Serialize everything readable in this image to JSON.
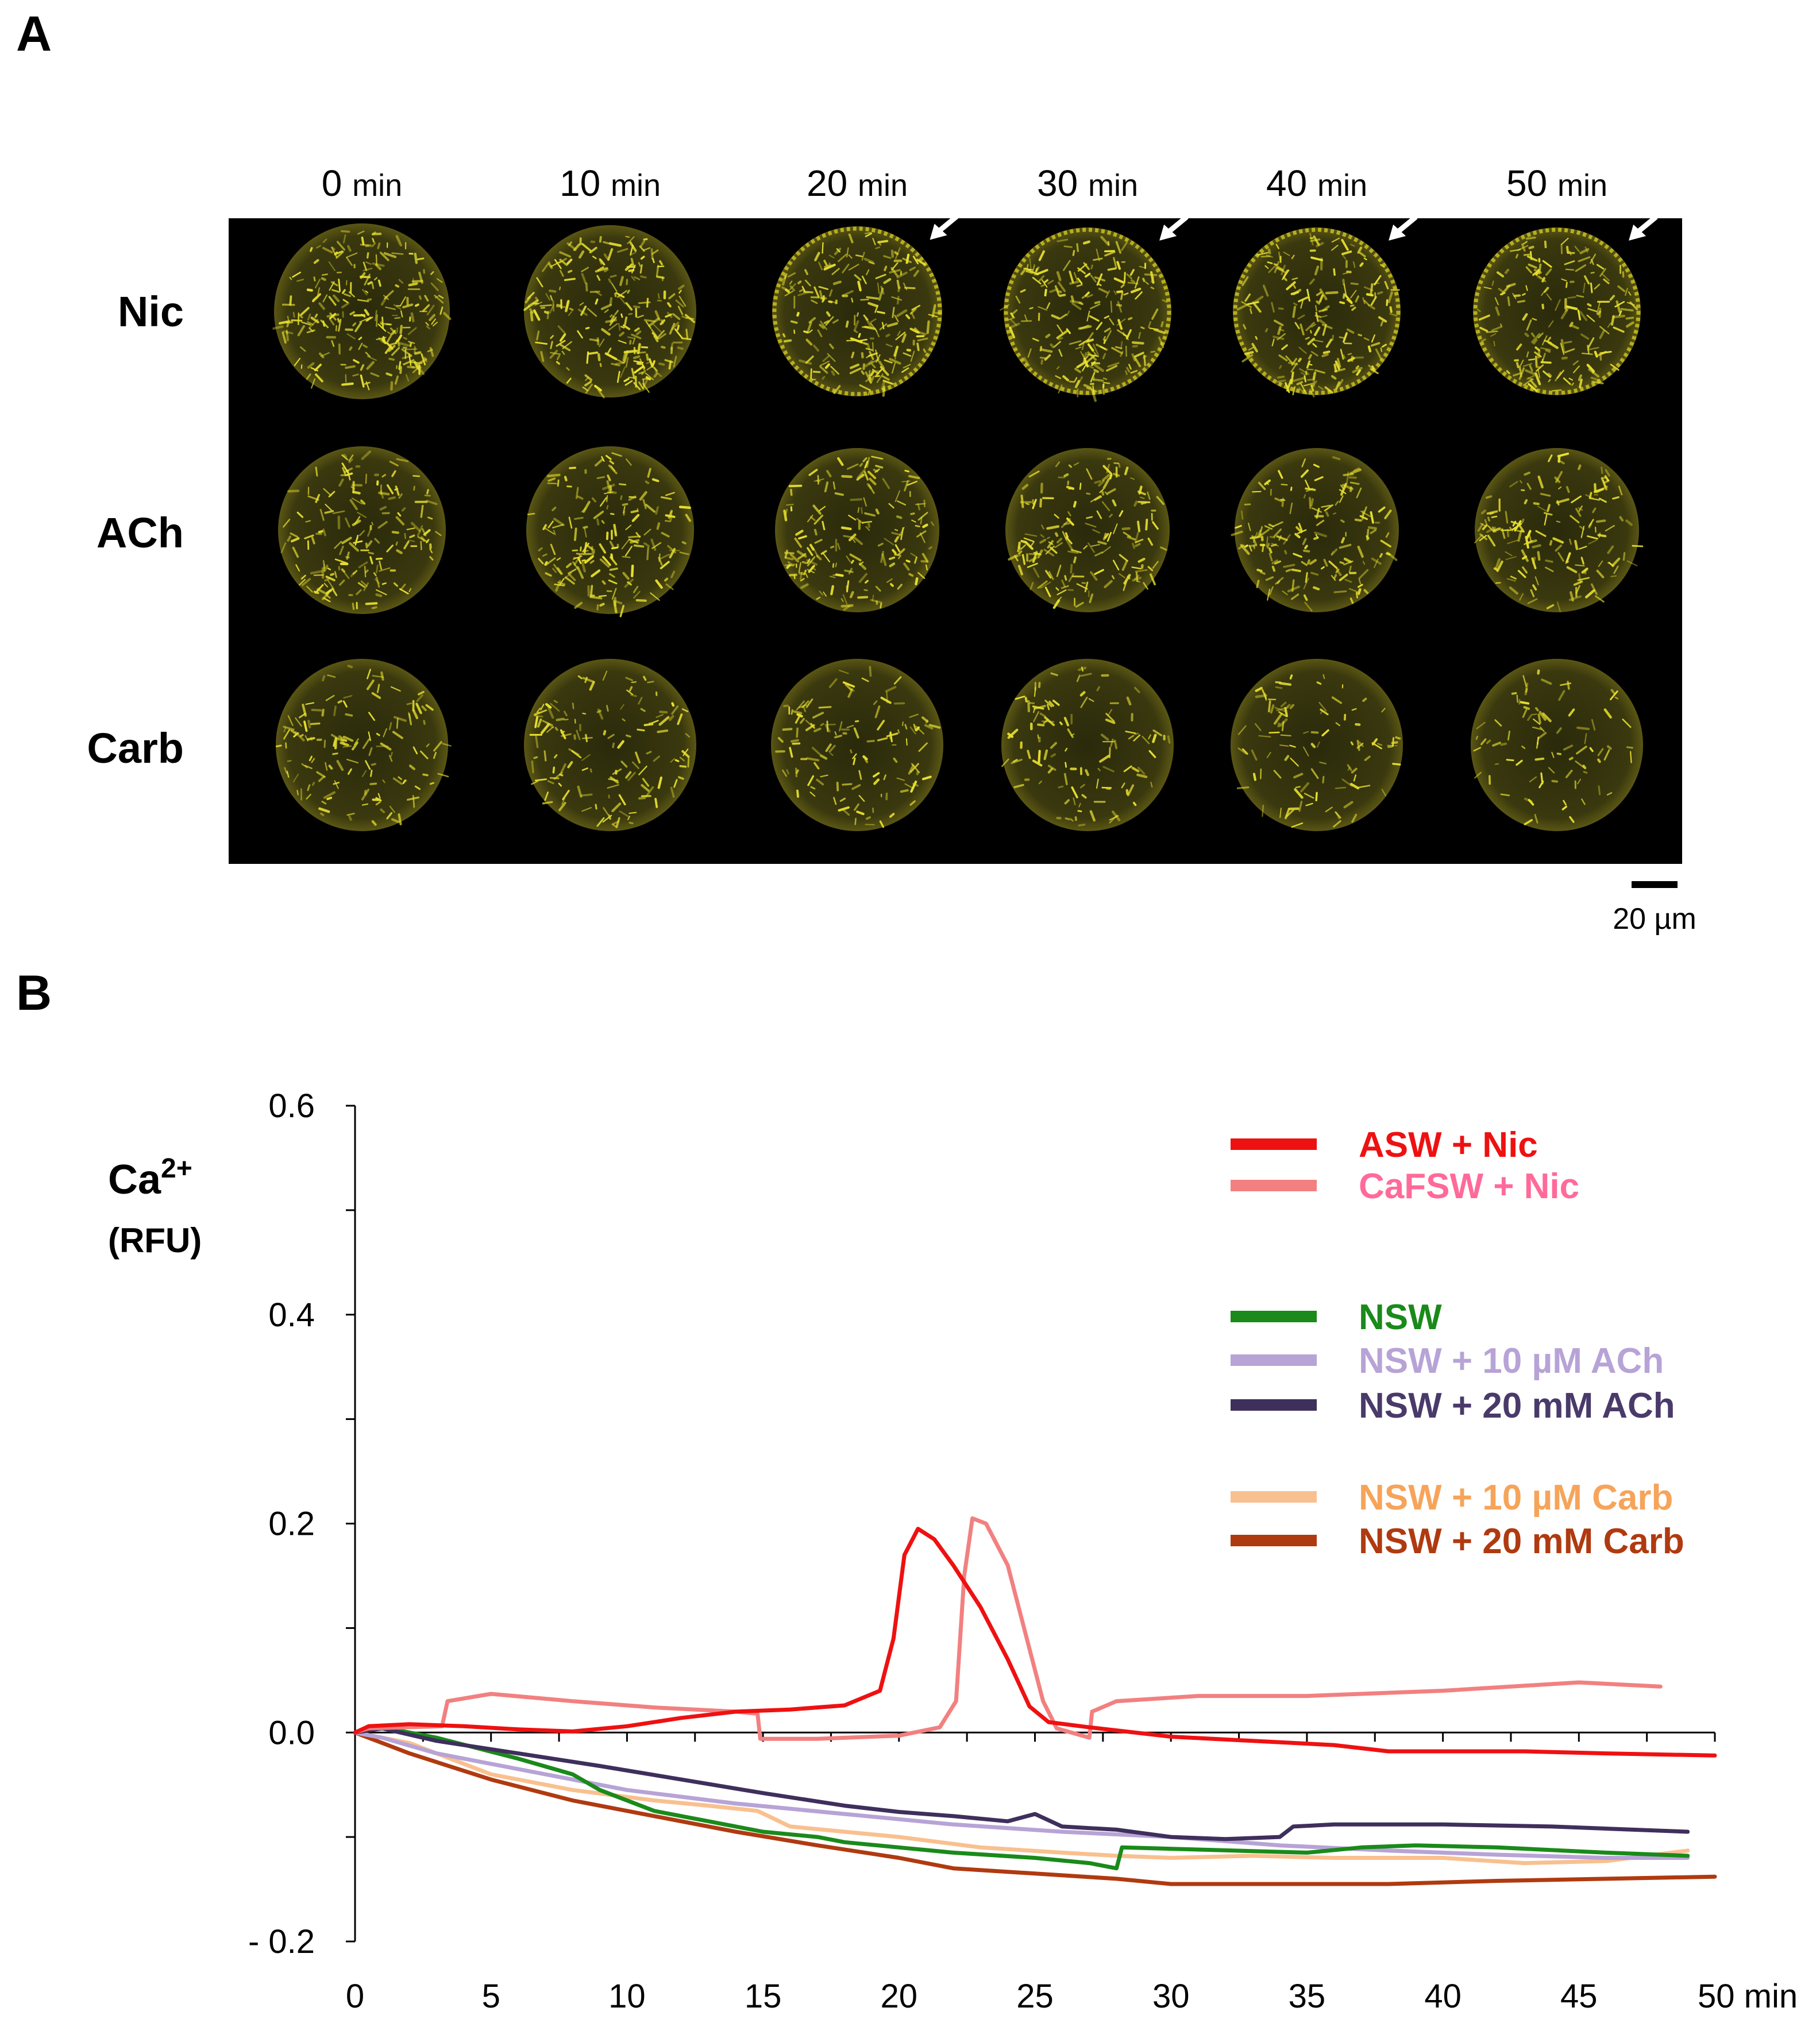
{
  "panels": {
    "a_label": "A",
    "b_label": "B"
  },
  "panel_a": {
    "time_labels": [
      {
        "value": "0",
        "unit": "min"
      },
      {
        "value": "10",
        "unit": "min"
      },
      {
        "value": "20",
        "unit": "min"
      },
      {
        "value": "30",
        "unit": "min"
      },
      {
        "value": "40",
        "unit": "min"
      },
      {
        "value": "50",
        "unit": "min"
      }
    ],
    "row_labels": [
      "Nic",
      "ACh",
      "Carb"
    ],
    "arrows_on_row": "Nic",
    "arrows_at_times": [
      "20",
      "30",
      "40",
      "50"
    ],
    "scale_bar_label": "20 µm",
    "fluorescence_color": "#e8e030"
  },
  "chart_data": {
    "type": "line",
    "ylabel": "Ca",
    "ylabel_superscript": "2+",
    "ylabel_unit": "(RFU)",
    "xlabel_unit": "min",
    "xlim": [
      0,
      50
    ],
    "ylim": [
      -0.2,
      0.6
    ],
    "x_ticks": [
      0,
      5,
      10,
      15,
      20,
      25,
      30,
      35,
      40,
      45,
      50
    ],
    "x_tick_labels": [
      "0",
      "5",
      "10",
      "15",
      "20",
      "25",
      "30",
      "35",
      "40",
      "45",
      "50 min"
    ],
    "y_ticks": [
      -0.2,
      0.0,
      0.2,
      0.4,
      0.6
    ],
    "y_tick_labels": [
      "- 0.2",
      "0.0",
      "0.2",
      "0.4",
      "0.6"
    ],
    "legend_position": "top-right",
    "series": [
      {
        "name": "ASW + Nic",
        "color": "#ee1111",
        "text_color": "#ee1111",
        "points": [
          [
            0,
            0
          ],
          [
            0.5,
            0.006
          ],
          [
            2,
            0.008
          ],
          [
            4,
            0.006
          ],
          [
            6,
            0.003
          ],
          [
            8,
            0.001
          ],
          [
            10,
            0.006
          ],
          [
            12,
            0.014
          ],
          [
            14,
            0.02
          ],
          [
            16,
            0.022
          ],
          [
            18,
            0.026
          ],
          [
            19.3,
            0.04
          ],
          [
            19.8,
            0.09
          ],
          [
            20.2,
            0.17
          ],
          [
            20.7,
            0.195
          ],
          [
            21.3,
            0.185
          ],
          [
            22,
            0.16
          ],
          [
            23,
            0.12
          ],
          [
            24,
            0.07
          ],
          [
            24.8,
            0.025
          ],
          [
            25.5,
            0.01
          ],
          [
            27,
            0.005
          ],
          [
            30,
            -0.004
          ],
          [
            33,
            -0.008
          ],
          [
            36,
            -0.012
          ],
          [
            38,
            -0.018
          ],
          [
            40,
            -0.018
          ],
          [
            43,
            -0.018
          ],
          [
            46,
            -0.02
          ],
          [
            50,
            -0.022
          ]
        ]
      },
      {
        "name": "CaFSW + Nic",
        "color": "#f28080",
        "text_color": "#ff6a9a",
        "points": [
          [
            0,
            0
          ],
          [
            0.5,
            0.004
          ],
          [
            3.2,
            0.006
          ],
          [
            3.4,
            0.03
          ],
          [
            5,
            0.037
          ],
          [
            8,
            0.03
          ],
          [
            11,
            0.024
          ],
          [
            14,
            0.02
          ],
          [
            14.8,
            0.018
          ],
          [
            14.9,
            -0.006
          ],
          [
            17,
            -0.006
          ],
          [
            20,
            -0.003
          ],
          [
            21.5,
            0.005
          ],
          [
            22.1,
            0.03
          ],
          [
            22.4,
            0.15
          ],
          [
            22.7,
            0.205
          ],
          [
            23.2,
            0.2
          ],
          [
            24,
            0.16
          ],
          [
            24.8,
            0.08
          ],
          [
            25.3,
            0.03
          ],
          [
            25.8,
            0.004
          ],
          [
            27,
            -0.005
          ],
          [
            27.1,
            0.02
          ],
          [
            28,
            0.03
          ],
          [
            31,
            0.035
          ],
          [
            35,
            0.035
          ],
          [
            40,
            0.04
          ],
          [
            45,
            0.048
          ],
          [
            48,
            0.044
          ]
        ]
      },
      {
        "name": "NSW",
        "color": "#1a8a1a",
        "text_color": "#1a8a1a",
        "points": [
          [
            0,
            0
          ],
          [
            1,
            0.005
          ],
          [
            3,
            -0.005
          ],
          [
            6,
            -0.025
          ],
          [
            8,
            -0.04
          ],
          [
            9,
            -0.055
          ],
          [
            11,
            -0.075
          ],
          [
            13,
            -0.085
          ],
          [
            15,
            -0.095
          ],
          [
            17,
            -0.1
          ],
          [
            18,
            -0.105
          ],
          [
            20,
            -0.11
          ],
          [
            22,
            -0.115
          ],
          [
            25,
            -0.12
          ],
          [
            27,
            -0.125
          ],
          [
            28,
            -0.13
          ],
          [
            28.2,
            -0.11
          ],
          [
            31,
            -0.112
          ],
          [
            35,
            -0.115
          ],
          [
            37,
            -0.11
          ],
          [
            39,
            -0.108
          ],
          [
            42,
            -0.11
          ],
          [
            46,
            -0.115
          ],
          [
            49,
            -0.118
          ]
        ]
      },
      {
        "name": "NSW + 10 µM ACh",
        "color": "#b7a3d6",
        "text_color": "#b7a3d6",
        "points": [
          [
            0,
            0
          ],
          [
            1,
            -0.005
          ],
          [
            3,
            -0.02
          ],
          [
            5,
            -0.03
          ],
          [
            8,
            -0.045
          ],
          [
            10,
            -0.055
          ],
          [
            14,
            -0.068
          ],
          [
            18,
            -0.078
          ],
          [
            22,
            -0.088
          ],
          [
            26,
            -0.095
          ],
          [
            30,
            -0.1
          ],
          [
            34,
            -0.108
          ],
          [
            38,
            -0.113
          ],
          [
            42,
            -0.117
          ],
          [
            46,
            -0.12
          ],
          [
            49,
            -0.12
          ]
        ]
      },
      {
        "name": "NSW + 20 mM ACh",
        "color": "#3f2f5c",
        "text_color": "#4a3a6a",
        "points": [
          [
            0,
            0
          ],
          [
            1,
            0.004
          ],
          [
            3,
            -0.008
          ],
          [
            6,
            -0.02
          ],
          [
            9,
            -0.032
          ],
          [
            12,
            -0.045
          ],
          [
            15,
            -0.058
          ],
          [
            18,
            -0.07
          ],
          [
            20,
            -0.076
          ],
          [
            22,
            -0.08
          ],
          [
            24,
            -0.085
          ],
          [
            25,
            -0.078
          ],
          [
            26,
            -0.09
          ],
          [
            28,
            -0.093
          ],
          [
            30,
            -0.1
          ],
          [
            32,
            -0.102
          ],
          [
            34,
            -0.1
          ],
          [
            34.5,
            -0.09
          ],
          [
            36,
            -0.088
          ],
          [
            40,
            -0.088
          ],
          [
            44,
            -0.09
          ],
          [
            47,
            -0.093
          ],
          [
            49,
            -0.095
          ]
        ]
      },
      {
        "name": "NSW + 10 µM Carb",
        "color": "#f9c08f",
        "text_color": "#f6a45a",
        "points": [
          [
            0,
            0
          ],
          [
            2,
            -0.01
          ],
          [
            5,
            -0.04
          ],
          [
            8,
            -0.055
          ],
          [
            11,
            -0.065
          ],
          [
            13,
            -0.07
          ],
          [
            14.8,
            -0.075
          ],
          [
            16,
            -0.09
          ],
          [
            18,
            -0.095
          ],
          [
            20,
            -0.1
          ],
          [
            23,
            -0.11
          ],
          [
            26,
            -0.115
          ],
          [
            28,
            -0.118
          ],
          [
            30,
            -0.12
          ],
          [
            33,
            -0.118
          ],
          [
            36,
            -0.12
          ],
          [
            40,
            -0.12
          ],
          [
            43,
            -0.125
          ],
          [
            46,
            -0.123
          ],
          [
            49,
            -0.113
          ]
        ]
      },
      {
        "name": "NSW + 20 mM Carb",
        "color": "#b03a10",
        "text_color": "#b03a10",
        "points": [
          [
            0,
            0
          ],
          [
            2,
            -0.02
          ],
          [
            5,
            -0.045
          ],
          [
            8,
            -0.065
          ],
          [
            11,
            -0.08
          ],
          [
            14,
            -0.095
          ],
          [
            17,
            -0.108
          ],
          [
            20,
            -0.12
          ],
          [
            22,
            -0.13
          ],
          [
            25,
            -0.135
          ],
          [
            28,
            -0.14
          ],
          [
            30,
            -0.145
          ],
          [
            34,
            -0.145
          ],
          [
            38,
            -0.145
          ],
          [
            42,
            -0.142
          ],
          [
            46,
            -0.14
          ],
          [
            50,
            -0.138
          ]
        ]
      }
    ]
  }
}
